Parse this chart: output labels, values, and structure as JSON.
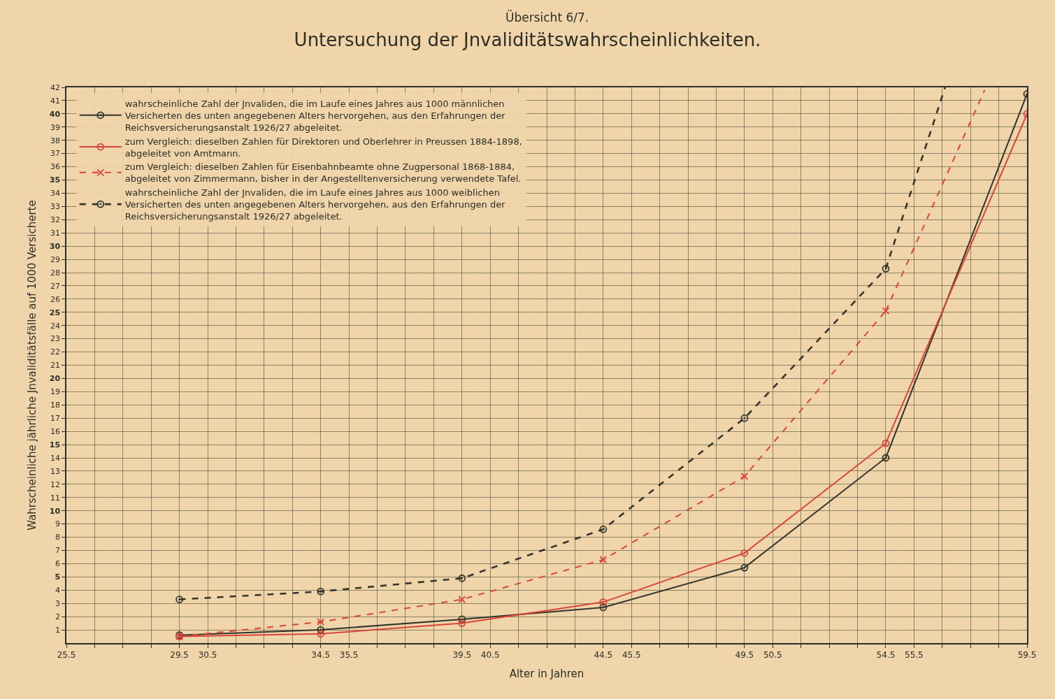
{
  "chart_data": {
    "type": "line",
    "title": "Untersuchung der Jnvaliditätswahrscheinlichkeiten.",
    "xlabel": "Alter in Jahren",
    "ylabel": "Wahrscheinliche jährliche Jnvaliditätsfälle auf 1000 Versicherte",
    "annotations": [
      "Übersicht 6/7."
    ],
    "x": [
      29.5,
      34.5,
      39.5,
      44.5,
      49.5,
      54.5,
      59.5
    ],
    "series": [
      {
        "name": "wahrscheinliche Zahl der Jnvaliden, die im Laufe eines Jahres aus 1000 männlichen Versicherten des unten angegebenen Alters hervorgehen, aus den Erfahrungen der Reichsversicherungsanstalt 1926/27 abgeleitet.",
        "color": "#33352d",
        "values": [
          0.6,
          1.0,
          1.8,
          2.7,
          5.7,
          14.0,
          41.5
        ],
        "marker": "circle",
        "line_style": "solid"
      },
      {
        "name": "zum Vergleich: dieselben Zahlen für Direktoren und Oberlehrer in Preussen 1884-1898, abgeleitet von Amtmann.",
        "color": "#d8453a",
        "values": [
          0.5,
          0.7,
          1.5,
          3.1,
          6.8,
          15.1,
          40.0
        ],
        "marker": "circle",
        "line_style": "solid"
      },
      {
        "name": "zum Vergleich: dieselben Zahlen für Eisenbahnbeamte ohne Zugpersonal 1868-1884, abgeleitet von Zimmermann, bisher in der Angestelltenversicherung verwendete Tafel.",
        "color": "#d8453a",
        "values": [
          0.5,
          1.6,
          3.3,
          6.3,
          12.6,
          25.1,
          null
        ],
        "marker": "cross",
        "line_style": "dashed"
      },
      {
        "name": "wahrscheinliche Zahl der Jnvaliden, die im Laufe eines Jahres aus 1000 weiblichen Versicherten des unten angegebenen Alters hervorgehen, aus den Erfahrungen der Reichsversicherungsanstalt 1926/27 abgeleitet.",
        "color": "#33352d",
        "values": [
          3.3,
          3.9,
          4.9,
          8.6,
          17.0,
          28.3,
          null
        ],
        "marker": "circle",
        "line_style": "dashed"
      },
      {
        "color": "#d8453a",
        "x": [
          54.5,
          58.0
        ],
        "values": [
          25.1,
          41.8
        ],
        "marker": "none",
        "line_style": "dashed"
      },
      {
        "color": "#33352d",
        "x": [
          54.5,
          56.6
        ],
        "values": [
          28.3,
          42.0
        ],
        "marker": "none",
        "line_style": "dashed"
      }
    ],
    "xlim": [
      25.5,
      59.5
    ],
    "xticks": [
      25.5,
      {
        "value": 26.5,
        "label": null
      },
      {
        "value": 27.5,
        "label": null
      },
      {
        "value": 28.5,
        "label": null
      },
      29.5,
      30.5,
      {
        "value": 31.5,
        "label": null
      },
      {
        "value": 32.5,
        "label": null
      },
      {
        "value": 33.5,
        "label": null
      },
      34.5,
      35.5,
      {
        "value": 36.5,
        "label": null
      },
      {
        "value": 37.5,
        "label": null
      },
      {
        "value": 38.5,
        "label": null
      },
      39.5,
      40.5,
      {
        "value": 41.5,
        "label": null
      },
      {
        "value": 42.5,
        "label": null
      },
      {
        "value": 43.5,
        "label": null
      },
      44.5,
      45.5,
      {
        "value": 46.5,
        "label": null
      },
      {
        "value": 47.5,
        "label": null
      },
      {
        "value": 48.5,
        "label": null
      },
      49.5,
      50.5,
      {
        "value": 51.5,
        "label": null
      },
      {
        "value": 52.5,
        "label": null
      },
      {
        "value": 53.5,
        "label": null
      },
      54.5,
      55.5,
      {
        "value": 56.5,
        "label": null
      },
      {
        "value": 57.5,
        "label": null
      },
      {
        "value": 58.5,
        "label": null
      },
      59.5
    ],
    "ylim": [
      0,
      42
    ],
    "yticks": [
      1,
      2,
      3,
      4,
      5,
      6,
      7,
      8,
      9,
      10,
      11,
      12,
      13,
      14,
      15,
      16,
      17,
      18,
      19,
      20,
      21,
      22,
      23,
      24,
      25,
      26,
      27,
      28,
      29,
      30,
      31,
      32,
      33,
      34,
      35,
      36,
      37,
      38,
      39,
      40,
      41,
      42
    ],
    "grid": true,
    "legend": "top left"
  }
}
